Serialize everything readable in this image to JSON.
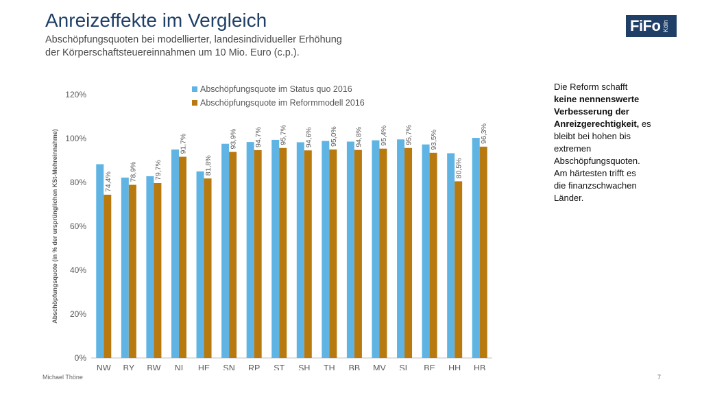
{
  "header": {
    "title": "Anreizeffekte im Vergleich",
    "subtitle_line1": "Abschöpfungsquoten bei modellierter, landesindividueller Erhöhung",
    "subtitle_line2": "der Körperschaftsteuereinnahmen um 10 Mio. Euro (c.p.)."
  },
  "logo": {
    "main": "FiFo",
    "sub": "Köln"
  },
  "sidebar": {
    "t1": "Die Reform schafft",
    "b1": "keine nennenswerte",
    "b2": "Verbesserung der",
    "b3": "Anreizgerechtigkeit,",
    "t2": " es",
    "t3": "bleibt bei hohen bis",
    "t4": "extremen",
    "t5": "Abschöpfungsquoten.",
    "t6": "Am härtesten trifft es",
    "t7": "die finanzschwachen",
    "t8": "Länder."
  },
  "footer": {
    "author": "Michael Thöne",
    "page": "7"
  },
  "colors": {
    "status_quo": "#5fb4e3",
    "reform": "#b8790f",
    "axis": "#bfbfbf",
    "text": "#595959"
  },
  "chart_data": {
    "type": "bar",
    "categories": [
      "NW",
      "BY",
      "BW",
      "NI",
      "HE",
      "SN",
      "RP",
      "ST",
      "SH",
      "TH",
      "BB",
      "MV",
      "SL",
      "BE",
      "HH",
      "HB"
    ],
    "ylabel": "Abschöpfungsquote (in % der ursprünglichen KSt-Mehreinnahme)",
    "ylim": [
      0,
      120
    ],
    "yticks": [
      0,
      20,
      40,
      60,
      80,
      100,
      120
    ],
    "ytick_labels": [
      "0%",
      "20%",
      "40%",
      "60%",
      "80%",
      "100%",
      "120%"
    ],
    "legend_position": "top",
    "series": [
      {
        "name": "Abschöpfungsquote im Status quo 2016",
        "values": [
          88.3,
          82.2,
          82.8,
          95.0,
          85.0,
          97.6,
          98.4,
          99.4,
          98.3,
          98.9,
          98.6,
          99.2,
          99.6,
          97.3,
          93.3,
          100.3
        ],
        "labels": []
      },
      {
        "name": "Abschöpfungsquote im Reformmodell 2016",
        "values": [
          74.4,
          78.9,
          79.7,
          91.7,
          81.8,
          93.9,
          94.7,
          95.7,
          94.6,
          95.0,
          94.8,
          95.4,
          95.7,
          93.5,
          80.5,
          96.3
        ],
        "labels": [
          "74,4%",
          "78,9%",
          "79,7%",
          "91,7%",
          "81,8%",
          "93,9%",
          "94,7%",
          "95,7%",
          "94,6%",
          "95,0%",
          "94,8%",
          "95,4%",
          "95,7%",
          "93,5%",
          "80,5%",
          "96,3%"
        ]
      }
    ]
  }
}
